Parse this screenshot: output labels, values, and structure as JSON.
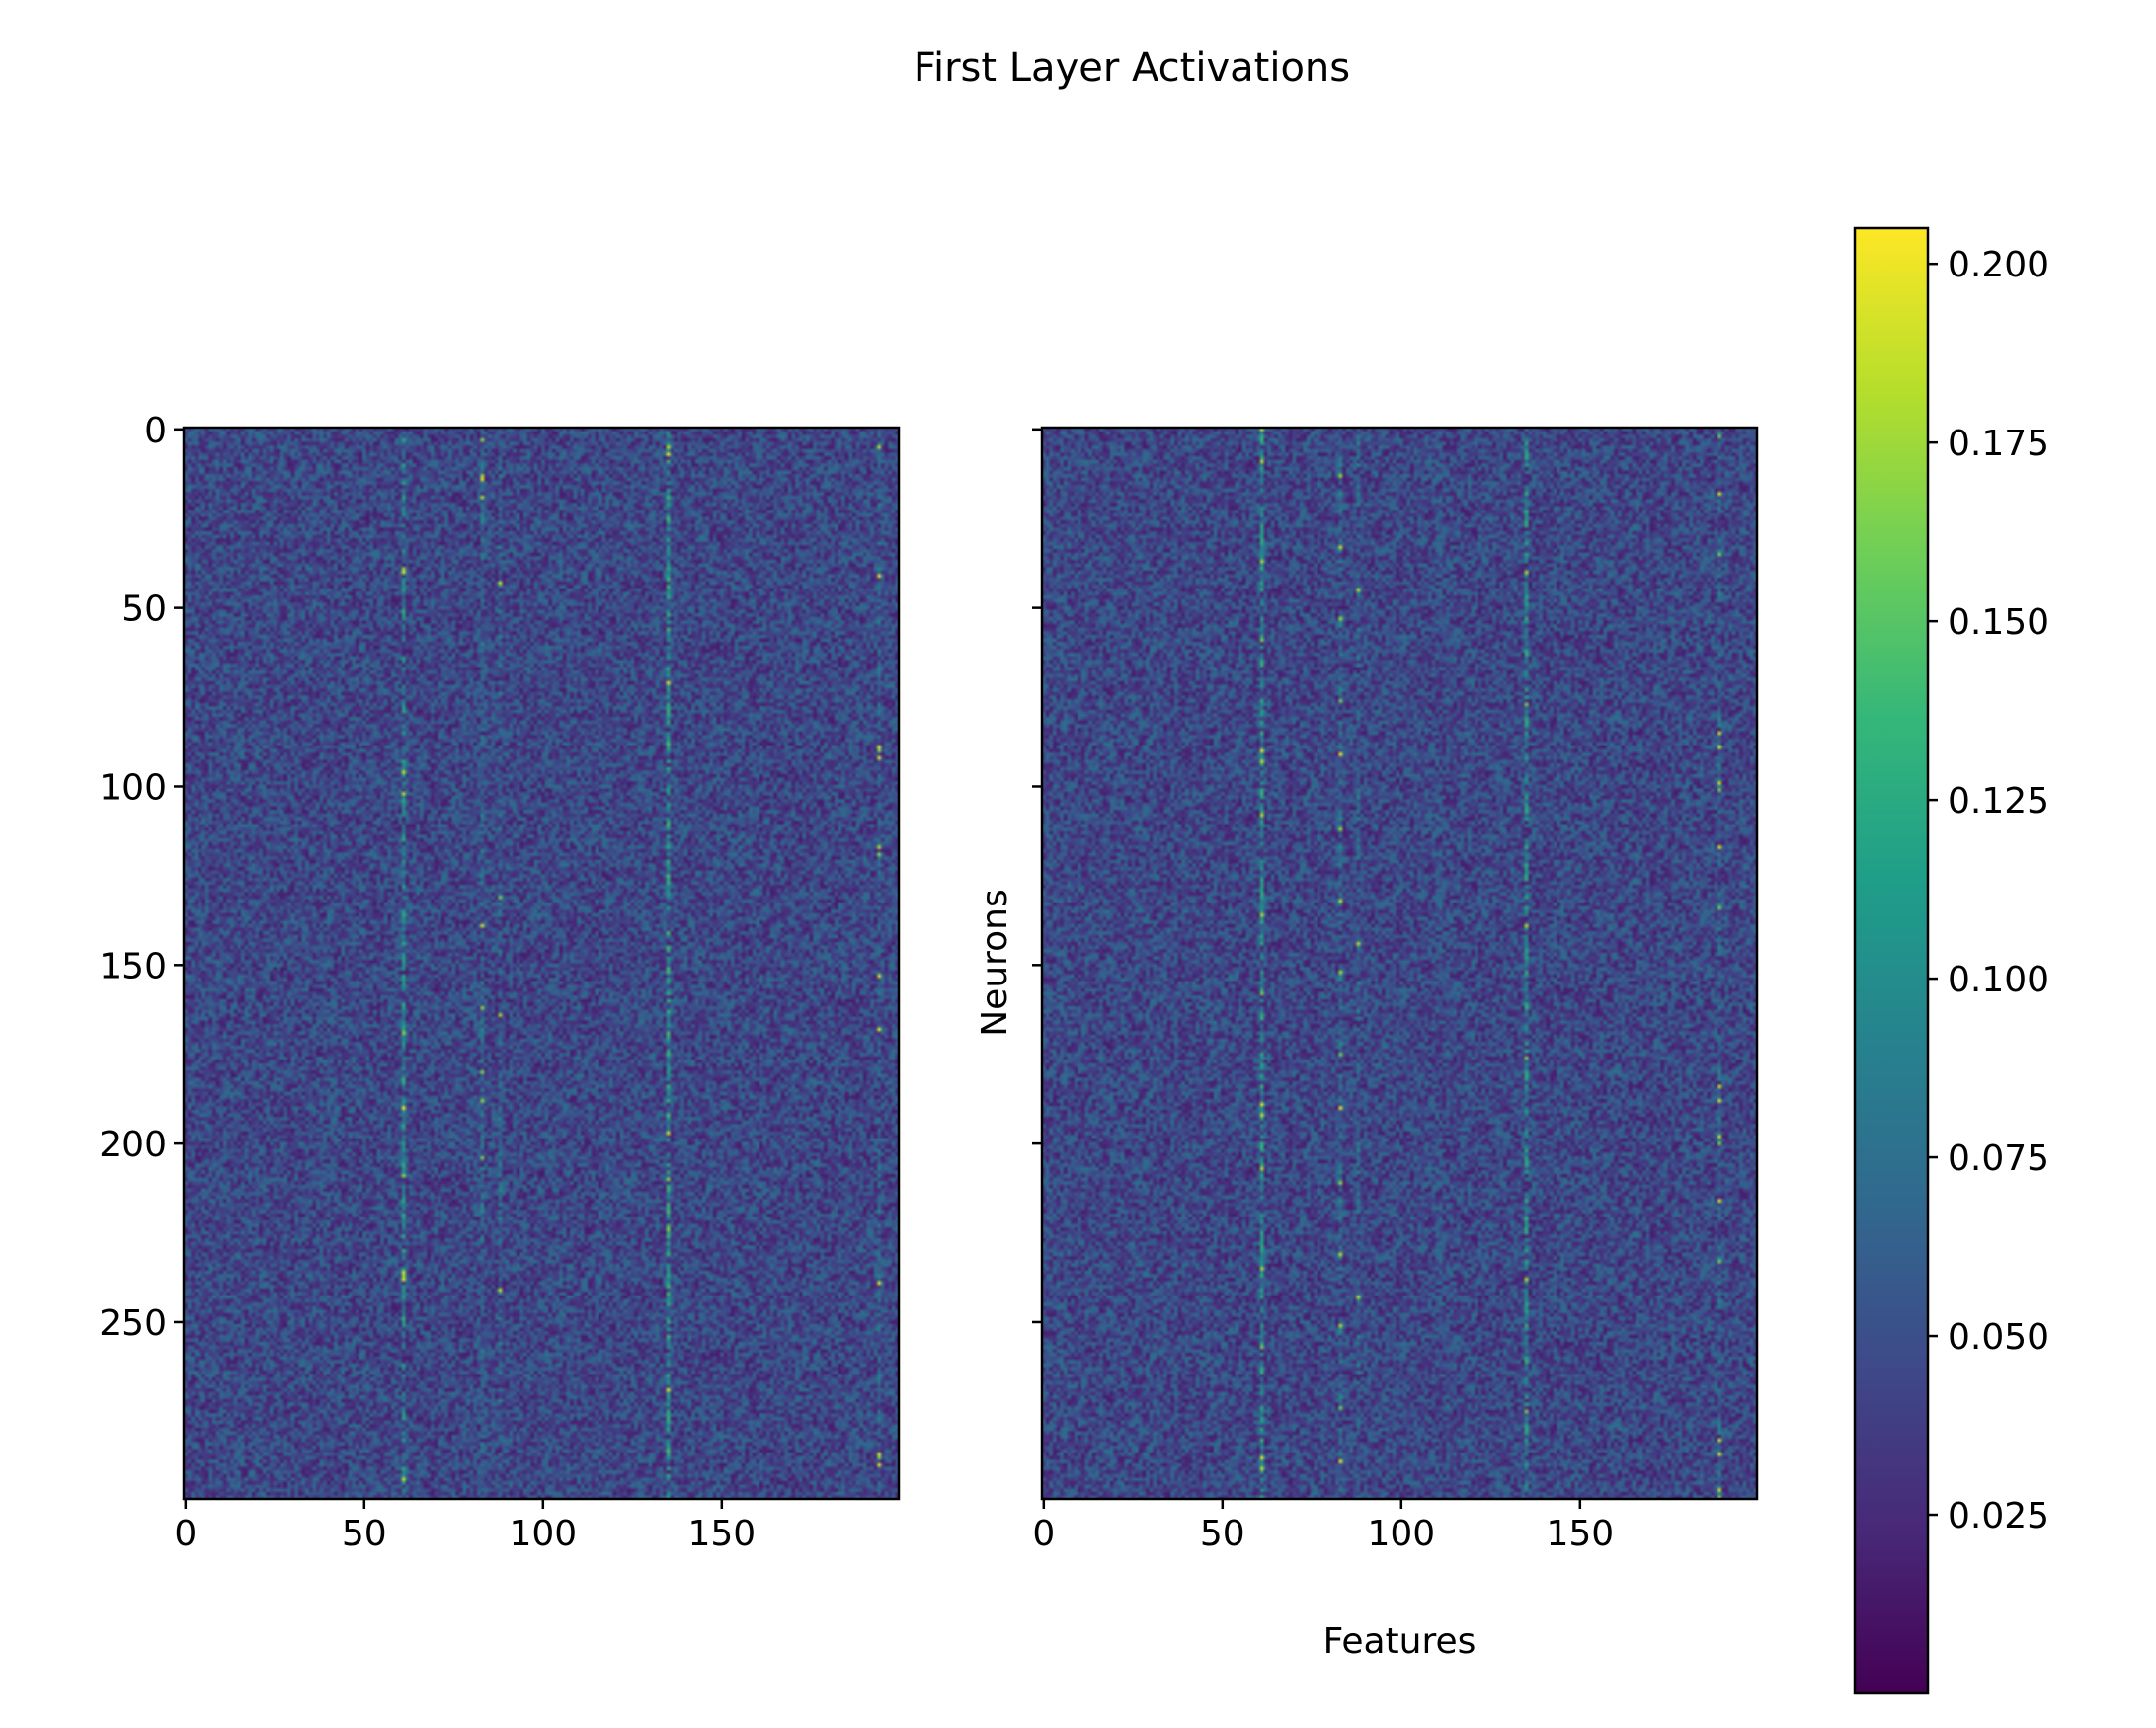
{
  "figure": {
    "title": "First Layer Activations"
  },
  "chart_data": [
    {
      "type": "heatmap",
      "panel": "left",
      "rows": 300,
      "cols": 200,
      "xlabel": "",
      "ylabel": "",
      "xticks": [
        0,
        50,
        100,
        150
      ],
      "xtick_labels": [
        "0",
        "50",
        "100",
        "150"
      ],
      "yticks": [
        0,
        50,
        100,
        150,
        200,
        250
      ],
      "ytick_labels": [
        "0",
        "50",
        "100",
        "150",
        "200",
        "250"
      ],
      "background_mean": 0.045,
      "background_spread": 0.03,
      "highlighted_columns": [
        61,
        83,
        88,
        135,
        194
      ],
      "highlighted_column_mean": [
        0.095,
        0.065,
        0.06,
        0.11,
        0.06
      ],
      "colormap": "viridis",
      "vmin": 0.0,
      "vmax": 0.205
    },
    {
      "type": "heatmap",
      "panel": "right",
      "rows": 300,
      "cols": 200,
      "xlabel": "Features",
      "ylabel": "Neurons",
      "xticks": [
        0,
        50,
        100,
        150
      ],
      "xtick_labels": [
        "0",
        "50",
        "100",
        "150"
      ],
      "yticks": [
        0,
        50,
        100,
        150,
        200,
        250
      ],
      "ytick_labels": [],
      "background_mean": 0.045,
      "background_spread": 0.03,
      "highlighted_columns": [
        61,
        83,
        88,
        135,
        189
      ],
      "highlighted_column_mean": [
        0.1,
        0.065,
        0.065,
        0.1,
        0.06
      ],
      "colormap": "viridis",
      "vmin": 0.0,
      "vmax": 0.205
    }
  ],
  "colorbar": {
    "colormap": "viridis",
    "vmin": 0.0,
    "vmax": 0.205,
    "ticks": [
      0.025,
      0.05,
      0.075,
      0.1,
      0.125,
      0.15,
      0.175,
      0.2
    ],
    "tick_labels": [
      "0.025",
      "0.050",
      "0.075",
      "0.100",
      "0.125",
      "0.150",
      "0.175",
      "0.200"
    ],
    "stops": [
      "#440154",
      "#482878",
      "#3e4989",
      "#31688e",
      "#26828e",
      "#1f9e89",
      "#35b779",
      "#6ece58",
      "#b5de2b",
      "#fde725"
    ]
  }
}
